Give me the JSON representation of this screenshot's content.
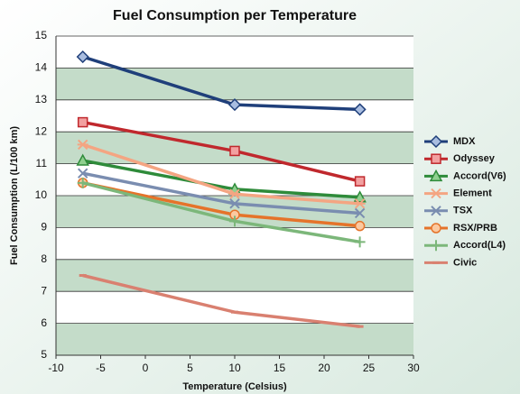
{
  "chart_data": {
    "type": "line",
    "title": "Fuel Consumption per Temperature",
    "x_label": "Temperature (Celsius)",
    "y_label": "Fuel Consumption (L/100 km)",
    "x": [
      -7,
      10,
      24
    ],
    "xlim": [
      -10,
      30
    ],
    "xticks": [
      -10,
      -5,
      0,
      5,
      10,
      15,
      20,
      25,
      30
    ],
    "ylim": [
      5,
      15
    ],
    "yticks": [
      5,
      6,
      7,
      8,
      9,
      10,
      11,
      12,
      13,
      14,
      15
    ],
    "legend": "right",
    "series": [
      {
        "name": "MDX",
        "color": "#1f3f7a",
        "marker": "diamond",
        "values": [
          14.35,
          12.85,
          12.7
        ]
      },
      {
        "name": "Odyssey",
        "color": "#c0282d",
        "marker": "square",
        "values": [
          12.3,
          11.4,
          10.45
        ]
      },
      {
        "name": "Accord(V6)",
        "color": "#2e8b3a",
        "marker": "triangle",
        "values": [
          11.1,
          10.2,
          9.95
        ]
      },
      {
        "name": "Element",
        "color": "#f4a582",
        "marker": "asterisk",
        "values": [
          11.6,
          10.05,
          9.75
        ]
      },
      {
        "name": "TSX",
        "color": "#7a8db0",
        "marker": "x",
        "values": [
          10.7,
          9.75,
          9.45
        ]
      },
      {
        "name": "RSX/PRB",
        "color": "#e5732a",
        "marker": "circle",
        "values": [
          10.4,
          9.4,
          9.05
        ]
      },
      {
        "name": "Accord(L4)",
        "color": "#7cb77a",
        "marker": "plus",
        "values": [
          10.4,
          9.2,
          8.55
        ]
      },
      {
        "name": "Civic",
        "color": "#d98070",
        "marker": "dash",
        "values": [
          7.5,
          6.35,
          5.9
        ]
      }
    ]
  }
}
